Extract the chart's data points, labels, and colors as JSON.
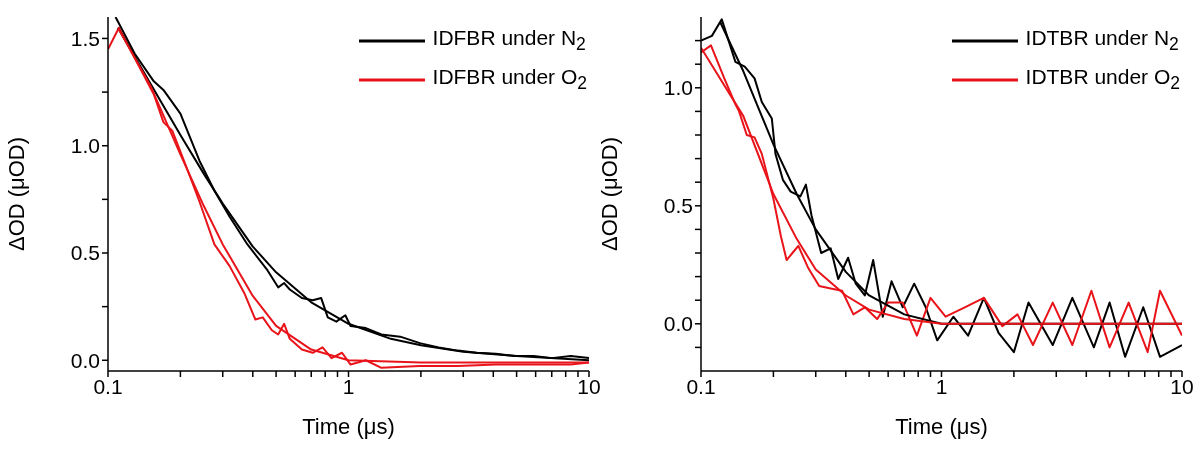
{
  "chart_data": [
    {
      "type": "line",
      "xlabel": "Time (μs)",
      "ylabel": "ΔOD (μOD)",
      "log": "x",
      "legend": "top right",
      "xlim": [
        0.1,
        10
      ],
      "ylim": [
        -0.05,
        1.6
      ],
      "xticks": [
        0.1,
        {
          "value": 0.2,
          "label": null
        },
        {
          "value": 0.3,
          "label": null
        },
        {
          "value": 0.4,
          "label": null
        },
        {
          "value": 0.5,
          "label": null
        },
        {
          "value": 0.6,
          "label": null
        },
        {
          "value": 0.7,
          "label": null
        },
        {
          "value": 0.8,
          "label": null
        },
        {
          "value": 0.9,
          "label": null
        },
        1,
        {
          "value": 2,
          "label": null
        },
        {
          "value": 3,
          "label": null
        },
        {
          "value": 4,
          "label": null
        },
        {
          "value": 5,
          "label": null
        },
        {
          "value": 6,
          "label": null
        },
        {
          "value": 7,
          "label": null
        },
        {
          "value": 8,
          "label": null
        },
        {
          "value": 9,
          "label": null
        },
        10
      ],
      "yticks": [
        {
          "value": 0,
          "label": "0.0"
        },
        {
          "value": 0.25,
          "label": null
        },
        {
          "value": 0.5,
          "label": "0.5"
        },
        {
          "value": 0.75,
          "label": null
        },
        {
          "value": 1,
          "label": "1.0"
        },
        {
          "value": 1.25,
          "label": null
        },
        {
          "value": 1.5,
          "label": "1.5"
        }
      ],
      "series": [
        {
          "name": "IDFBR under N$_{2}$",
          "color": "#000000",
          "x": [
            0.1075,
            0.129,
            0.155,
            0.17,
            0.2,
            0.24,
            0.277,
            0.32,
            0.38,
            0.46,
            0.51,
            0.54,
            0.57,
            0.64,
            0.71,
            0.77,
            0.82,
            0.89,
            0.97,
            1.02,
            1.18,
            1.37,
            1.64,
            1.98,
            2.37,
            2.85,
            3.4,
            4.1,
            4.9,
            5.9,
            7.0,
            8.4,
            10
          ],
          "values": [
            1.6,
            1.43,
            1.3,
            1.26,
            1.15,
            0.93,
            0.79,
            0.67,
            0.54,
            0.42,
            0.34,
            0.36,
            0.33,
            0.29,
            0.28,
            0.29,
            0.2,
            0.18,
            0.21,
            0.16,
            0.15,
            0.12,
            0.11,
            0.08,
            0.06,
            0.045,
            0.035,
            0.03,
            0.02,
            0.02,
            0.01,
            0.02,
            0.01
          ]
        },
        {
          "name": "IDFBR under O$_{2}$",
          "color": "#e8141a",
          "x": [
            0.1,
            0.111,
            0.129,
            0.155,
            0.17,
            0.185,
            0.207,
            0.24,
            0.277,
            0.32,
            0.37,
            0.41,
            0.44,
            0.48,
            0.51,
            0.54,
            0.57,
            0.64,
            0.71,
            0.78,
            0.85,
            0.94,
            1.02,
            1.18,
            1.37,
            1.98,
            2.85,
            4.1,
            5.9,
            8.4,
            10
          ],
          "values": [
            1.45,
            1.55,
            1.41,
            1.24,
            1.11,
            1.07,
            0.93,
            0.74,
            0.54,
            0.44,
            0.31,
            0.19,
            0.2,
            0.14,
            0.12,
            0.17,
            0.1,
            0.05,
            0.035,
            0.06,
            0.01,
            0.035,
            -0.02,
            0,
            -0.035,
            -0.027,
            -0.027,
            -0.02,
            -0.02,
            -0.02,
            -0.01
          ]
        },
        {
          "color": "#000000",
          "x": [
            0.11,
            0.15,
            0.2,
            0.25,
            0.3,
            0.4,
            0.5,
            0.7,
            1,
            1.5,
            2,
            3,
            5,
            10
          ],
          "values": [
            1.55,
            1.29,
            1.05,
            0.87,
            0.73,
            0.53,
            0.41,
            0.27,
            0.17,
            0.1,
            0.07,
            0.04,
            0.02,
            0
          ]
        },
        {
          "color": "#e8141a",
          "x": [
            0.11,
            0.15,
            0.2,
            0.25,
            0.3,
            0.4,
            0.5,
            0.7,
            1,
            2,
            10
          ],
          "values": [
            1.55,
            1.28,
            0.96,
            0.72,
            0.54,
            0.3,
            0.16,
            0.05,
            0,
            -0.01,
            -0.01
          ]
        }
      ]
    },
    {
      "type": "line",
      "xlabel": "Time (μs)",
      "ylabel": "ΔOD (μOD)",
      "log": "x",
      "legend": "top right",
      "xlim": [
        0.1,
        10
      ],
      "ylim": [
        -0.2,
        1.3
      ],
      "xticks": [
        0.1,
        {
          "value": 0.2,
          "label": null
        },
        {
          "value": 0.3,
          "label": null
        },
        {
          "value": 0.4,
          "label": null
        },
        {
          "value": 0.5,
          "label": null
        },
        {
          "value": 0.6,
          "label": null
        },
        {
          "value": 0.7,
          "label": null
        },
        {
          "value": 0.8,
          "label": null
        },
        {
          "value": 0.9,
          "label": null
        },
        1,
        {
          "value": 2,
          "label": null
        },
        {
          "value": 3,
          "label": null
        },
        {
          "value": 4,
          "label": null
        },
        {
          "value": 5,
          "label": null
        },
        {
          "value": 6,
          "label": null
        },
        {
          "value": 7,
          "label": null
        },
        {
          "value": 8,
          "label": null
        },
        {
          "value": 9,
          "label": null
        },
        10
      ],
      "yticks": [
        {
          "value": -0.1,
          "label": null
        },
        {
          "value": 0,
          "label": "0.0"
        },
        {
          "value": 0.1,
          "label": null
        },
        {
          "value": 0.2,
          "label": null
        },
        {
          "value": 0.3,
          "label": null
        },
        {
          "value": 0.4,
          "label": null
        },
        {
          "value": 0.5,
          "label": "0.5"
        },
        {
          "value": 0.6,
          "label": null
        },
        {
          "value": 0.7,
          "label": null
        },
        {
          "value": 0.8,
          "label": null
        },
        {
          "value": 0.9,
          "label": null
        },
        {
          "value": 1,
          "label": "1.0"
        },
        {
          "value": 1.1,
          "label": null
        },
        {
          "value": 1.2,
          "label": null
        }
      ],
      "series": [
        {
          "name": "IDTBR under N$_{2}$",
          "color": "#000000",
          "x": [
            0.1,
            0.111,
            0.122,
            0.139,
            0.152,
            0.167,
            0.179,
            0.197,
            0.204,
            0.219,
            0.236,
            0.259,
            0.273,
            0.288,
            0.316,
            0.346,
            0.372,
            0.409,
            0.44,
            0.48,
            0.52,
            0.57,
            0.62,
            0.69,
            0.77,
            0.86,
            0.96,
            1.12,
            1.29,
            1.5,
            1.73,
            2.0,
            2.3,
            2.9,
            3.5,
            4.3,
            5.0,
            5.8,
            6.9,
            8.1,
            10
          ],
          "values": [
            1.2,
            1.22,
            1.29,
            1.11,
            1.09,
            1.04,
            0.94,
            0.87,
            0.72,
            0.61,
            0.56,
            0.54,
            0.59,
            0.46,
            0.3,
            0.32,
            0.19,
            0.28,
            0.17,
            0.12,
            0.27,
            0.03,
            0.18,
            0.07,
            0.17,
            0.07,
            -0.07,
            0.03,
            -0.05,
            0.11,
            -0.04,
            -0.12,
            0.09,
            -0.09,
            0.11,
            -0.1,
            0.09,
            -0.14,
            0.07,
            -0.14,
            -0.09
          ]
        },
        {
          "name": "IDTBR under O$_{2}$",
          "color": "#e8141a",
          "x": [
            0.1,
            0.11,
            0.125,
            0.139,
            0.144,
            0.155,
            0.167,
            0.179,
            0.2,
            0.215,
            0.227,
            0.24,
            0.254,
            0.278,
            0.31,
            0.346,
            0.386,
            0.43,
            0.48,
            0.54,
            0.6,
            0.69,
            0.79,
            0.9,
            1.04,
            1.25,
            1.5,
            1.79,
            2.07,
            2.4,
            2.9,
            3.5,
            4.2,
            5.0,
            6.0,
            7.2,
            8.1,
            10
          ],
          "values": [
            1.15,
            1.18,
            1.04,
            0.93,
            0.9,
            0.8,
            0.79,
            0.72,
            0.53,
            0.37,
            0.27,
            0.3,
            0.33,
            0.24,
            0.16,
            0.15,
            0.14,
            0.04,
            0.07,
            0.02,
            0.09,
            0.09,
            -0.05,
            0.11,
            0.03,
            0.07,
            0.11,
            -0.01,
            0.04,
            -0.09,
            0.09,
            -0.09,
            0.14,
            -0.1,
            0.09,
            -0.12,
            0.14,
            -0.05
          ]
        },
        {
          "color": "#000000",
          "x": [
            0.12,
            0.15,
            0.2,
            0.25,
            0.3,
            0.4,
            0.5,
            0.7,
            1,
            10
          ],
          "values": [
            1.28,
            1.07,
            0.76,
            0.55,
            0.4,
            0.22,
            0.12,
            0.04,
            0,
            0
          ]
        },
        {
          "color": "#e8141a",
          "x": [
            0.1,
            0.15,
            0.2,
            0.25,
            0.3,
            0.4,
            0.5,
            0.7,
            1,
            10
          ],
          "values": [
            1.17,
            0.88,
            0.55,
            0.36,
            0.23,
            0.12,
            0.06,
            0.02,
            0,
            0
          ]
        }
      ]
    }
  ]
}
